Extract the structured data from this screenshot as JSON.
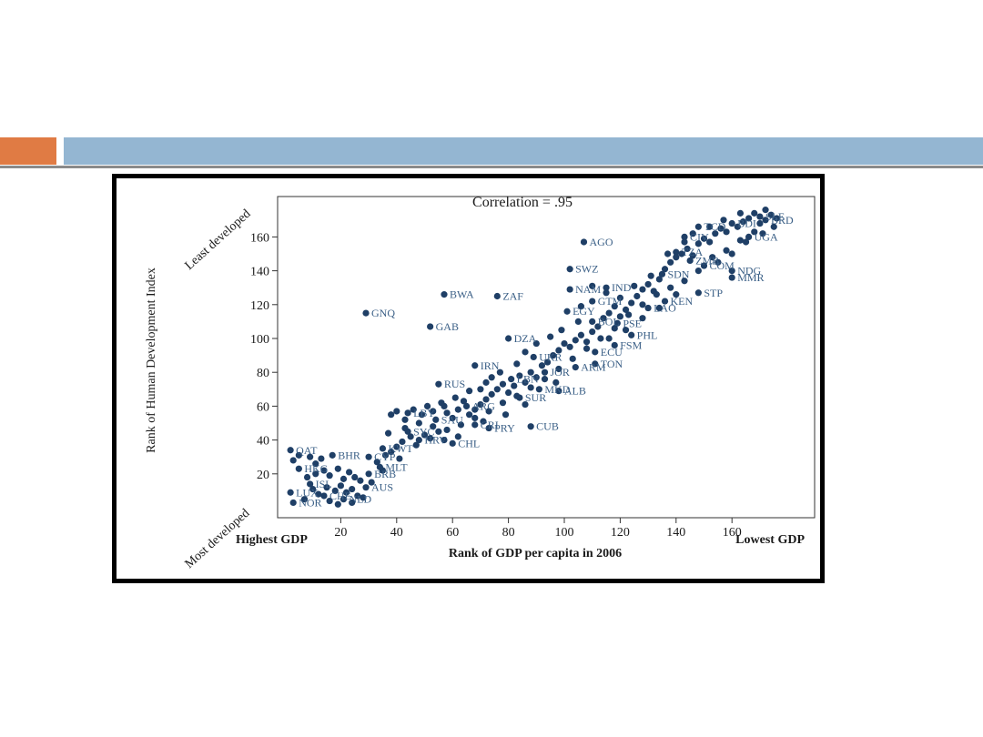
{
  "slide": {
    "accent_orange": "#e07b44",
    "accent_blue": "#94b6d2"
  },
  "chart_data": {
    "type": "scatter",
    "title": "Correlation = .95",
    "xlabel": "Rank of GDP per capita in 2006",
    "ylabel": "Rank of Human Development Index",
    "x_low_label": "Highest GDP",
    "x_high_label": "Lowest GDP",
    "y_low_label": "Most developed",
    "y_high_label": "Least developed",
    "xlim": [
      0,
      180
    ],
    "ylim": [
      0,
      180
    ],
    "xticks": [
      20,
      40,
      60,
      80,
      100,
      120,
      140,
      160
    ],
    "yticks": [
      20,
      40,
      60,
      80,
      100,
      120,
      140,
      160
    ],
    "marker_color": "#1f3f66",
    "label_color": "#3a5f86",
    "grid": false,
    "points": [
      {
        "x": 107,
        "y": 157,
        "label": "AGO"
      },
      {
        "x": 102,
        "y": 141,
        "label": "SWZ"
      },
      {
        "x": 57,
        "y": 126,
        "label": "BWA"
      },
      {
        "x": 76,
        "y": 125,
        "label": "ZAF"
      },
      {
        "x": 29,
        "y": 115,
        "label": "GNQ"
      },
      {
        "x": 52,
        "y": 107,
        "label": "GAB"
      },
      {
        "x": 101,
        "y": 116,
        "label": "EGY"
      },
      {
        "x": 80,
        "y": 100,
        "label": "DZA"
      },
      {
        "x": 111,
        "y": 85,
        "label": "TON"
      },
      {
        "x": 98,
        "y": 69,
        "label": "ALB"
      },
      {
        "x": 88,
        "y": 48,
        "label": "CUB"
      },
      {
        "x": 2,
        "y": 34,
        "label": "QAT"
      },
      {
        "x": 17,
        "y": 31,
        "label": "BHR"
      },
      {
        "x": 5,
        "y": 23,
        "label": "HKG"
      },
      {
        "x": 2,
        "y": 9,
        "label": "LUX"
      },
      {
        "x": 3,
        "y": 3,
        "label": "NOR"
      },
      {
        "x": 68,
        "y": 84,
        "label": "IRN"
      },
      {
        "x": 55,
        "y": 73,
        "label": "RUS"
      },
      {
        "x": 102,
        "y": 129,
        "label": "NAM"
      },
      {
        "x": 110,
        "y": 122,
        "label": "GTM"
      },
      {
        "x": 119,
        "y": 109,
        "label": "PSE"
      },
      {
        "x": 124,
        "y": 102,
        "label": "PHL"
      },
      {
        "x": 118,
        "y": 96,
        "label": "FSM"
      },
      {
        "x": 111,
        "y": 92,
        "label": "ECU"
      },
      {
        "x": 104,
        "y": 83,
        "label": "ARM"
      },
      {
        "x": 73,
        "y": 47,
        "label": "PRY"
      },
      {
        "x": 68,
        "y": 49,
        "label": "CRI"
      },
      {
        "x": 60,
        "y": 38,
        "label": "CHL"
      },
      {
        "x": 35,
        "y": 35,
        "label": "KWT"
      },
      {
        "x": 30,
        "y": 30,
        "label": "CYP"
      },
      {
        "x": 34,
        "y": 24,
        "label": "MLT"
      },
      {
        "x": 30,
        "y": 20,
        "label": "BRB"
      },
      {
        "x": 29,
        "y": 12,
        "label": "AUS"
      },
      {
        "x": 148,
        "y": 127,
        "label": "STP"
      },
      {
        "x": 160,
        "y": 136,
        "label": "MMR"
      },
      {
        "x": 160,
        "y": 140,
        "label": "NDG"
      },
      {
        "x": 150,
        "y": 143,
        "label": "COM"
      },
      {
        "x": 143,
        "y": 160,
        "label": "CIV"
      },
      {
        "x": 148,
        "y": 166,
        "label": "TCD"
      },
      {
        "x": 160,
        "y": 168,
        "label": "BDI"
      },
      {
        "x": 172,
        "y": 170,
        "label": "BRD"
      },
      {
        "x": 166,
        "y": 160,
        "label": "UGA"
      },
      {
        "x": 170,
        "y": 172,
        "label": "SLE"
      },
      {
        "x": 135,
        "y": 138,
        "label": "SDN"
      },
      {
        "x": 145,
        "y": 146,
        "label": "ZMB"
      },
      {
        "x": 140,
        "y": 151,
        "label": "TZA"
      },
      {
        "x": 136,
        "y": 122,
        "label": "KEN"
      },
      {
        "x": 130,
        "y": 118,
        "label": "LAO"
      },
      {
        "x": 115,
        "y": 130,
        "label": "IND"
      },
      {
        "x": 110,
        "y": 110,
        "label": "BOL"
      },
      {
        "x": 89,
        "y": 89,
        "label": "UKR"
      },
      {
        "x": 93,
        "y": 80,
        "label": "JOR"
      },
      {
        "x": 81,
        "y": 76,
        "label": "LBN"
      },
      {
        "x": 91,
        "y": 70,
        "label": "MKD"
      },
      {
        "x": 84,
        "y": 65,
        "label": "SUR"
      },
      {
        "x": 65,
        "y": 60,
        "label": "ARG"
      },
      {
        "x": 44,
        "y": 56,
        "label": "LBY"
      },
      {
        "x": 54,
        "y": 52,
        "label": "SAU"
      },
      {
        "x": 48,
        "y": 40,
        "label": "HRV"
      },
      {
        "x": 44,
        "y": 45,
        "label": "SYC"
      },
      {
        "x": 9,
        "y": 14,
        "label": "ISL"
      },
      {
        "x": 14,
        "y": 7,
        "label": "CHE"
      },
      {
        "x": 21,
        "y": 5,
        "label": "NLD"
      },
      {
        "x": 3,
        "y": 28
      },
      {
        "x": 5,
        "y": 31
      },
      {
        "x": 9,
        "y": 30
      },
      {
        "x": 11,
        "y": 26
      },
      {
        "x": 13,
        "y": 29
      },
      {
        "x": 8,
        "y": 18
      },
      {
        "x": 11,
        "y": 20
      },
      {
        "x": 14,
        "y": 22
      },
      {
        "x": 16,
        "y": 19
      },
      {
        "x": 19,
        "y": 23
      },
      {
        "x": 21,
        "y": 17
      },
      {
        "x": 23,
        "y": 21
      },
      {
        "x": 25,
        "y": 18
      },
      {
        "x": 27,
        "y": 16
      },
      {
        "x": 10,
        "y": 11
      },
      {
        "x": 12,
        "y": 8
      },
      {
        "x": 15,
        "y": 12
      },
      {
        "x": 18,
        "y": 10
      },
      {
        "x": 20,
        "y": 13
      },
      {
        "x": 22,
        "y": 9
      },
      {
        "x": 24,
        "y": 11
      },
      {
        "x": 26,
        "y": 7
      },
      {
        "x": 7,
        "y": 5
      },
      {
        "x": 16,
        "y": 4
      },
      {
        "x": 19,
        "y": 2
      },
      {
        "x": 24,
        "y": 3
      },
      {
        "x": 28,
        "y": 6
      },
      {
        "x": 31,
        "y": 15
      },
      {
        "x": 33,
        "y": 27
      },
      {
        "x": 36,
        "y": 31
      },
      {
        "x": 38,
        "y": 33
      },
      {
        "x": 40,
        "y": 36
      },
      {
        "x": 42,
        "y": 39
      },
      {
        "x": 45,
        "y": 42
      },
      {
        "x": 47,
        "y": 37
      },
      {
        "x": 50,
        "y": 43
      },
      {
        "x": 52,
        "y": 41
      },
      {
        "x": 55,
        "y": 45
      },
      {
        "x": 57,
        "y": 40
      },
      {
        "x": 38,
        "y": 55
      },
      {
        "x": 40,
        "y": 57
      },
      {
        "x": 43,
        "y": 52
      },
      {
        "x": 46,
        "y": 58
      },
      {
        "x": 49,
        "y": 55
      },
      {
        "x": 51,
        "y": 60
      },
      {
        "x": 53,
        "y": 57
      },
      {
        "x": 56,
        "y": 62
      },
      {
        "x": 58,
        "y": 56
      },
      {
        "x": 60,
        "y": 53
      },
      {
        "x": 62,
        "y": 58
      },
      {
        "x": 64,
        "y": 63
      },
      {
        "x": 66,
        "y": 55
      },
      {
        "x": 68,
        "y": 58
      },
      {
        "x": 70,
        "y": 61
      },
      {
        "x": 72,
        "y": 64
      },
      {
        "x": 74,
        "y": 67
      },
      {
        "x": 76,
        "y": 70
      },
      {
        "x": 78,
        "y": 73
      },
      {
        "x": 80,
        "y": 68
      },
      {
        "x": 82,
        "y": 72
      },
      {
        "x": 84,
        "y": 78
      },
      {
        "x": 86,
        "y": 74
      },
      {
        "x": 88,
        "y": 80
      },
      {
        "x": 90,
        "y": 77
      },
      {
        "x": 92,
        "y": 84
      },
      {
        "x": 94,
        "y": 86
      },
      {
        "x": 96,
        "y": 90
      },
      {
        "x": 98,
        "y": 93
      },
      {
        "x": 100,
        "y": 97
      },
      {
        "x": 102,
        "y": 95
      },
      {
        "x": 104,
        "y": 99
      },
      {
        "x": 106,
        "y": 102
      },
      {
        "x": 108,
        "y": 98
      },
      {
        "x": 110,
        "y": 104
      },
      {
        "x": 112,
        "y": 107
      },
      {
        "x": 114,
        "y": 112
      },
      {
        "x": 116,
        "y": 115
      },
      {
        "x": 118,
        "y": 119
      },
      {
        "x": 120,
        "y": 113
      },
      {
        "x": 122,
        "y": 117
      },
      {
        "x": 124,
        "y": 121
      },
      {
        "x": 126,
        "y": 125
      },
      {
        "x": 128,
        "y": 129
      },
      {
        "x": 130,
        "y": 132
      },
      {
        "x": 132,
        "y": 128
      },
      {
        "x": 134,
        "y": 135
      },
      {
        "x": 136,
        "y": 141
      },
      {
        "x": 138,
        "y": 145
      },
      {
        "x": 140,
        "y": 148
      },
      {
        "x": 142,
        "y": 150
      },
      {
        "x": 144,
        "y": 153
      },
      {
        "x": 146,
        "y": 149
      },
      {
        "x": 148,
        "y": 156
      },
      {
        "x": 150,
        "y": 159
      },
      {
        "x": 152,
        "y": 157
      },
      {
        "x": 154,
        "y": 162
      },
      {
        "x": 156,
        "y": 165
      },
      {
        "x": 158,
        "y": 163
      },
      {
        "x": 162,
        "y": 166
      },
      {
        "x": 164,
        "y": 169
      },
      {
        "x": 166,
        "y": 171
      },
      {
        "x": 168,
        "y": 174
      },
      {
        "x": 170,
        "y": 168
      },
      {
        "x": 172,
        "y": 176
      },
      {
        "x": 174,
        "y": 173
      },
      {
        "x": 176,
        "y": 171
      },
      {
        "x": 168,
        "y": 163
      },
      {
        "x": 163,
        "y": 158
      },
      {
        "x": 158,
        "y": 152
      },
      {
        "x": 153,
        "y": 148
      },
      {
        "x": 148,
        "y": 140
      },
      {
        "x": 143,
        "y": 134
      },
      {
        "x": 138,
        "y": 130
      },
      {
        "x": 133,
        "y": 126
      },
      {
        "x": 128,
        "y": 120
      },
      {
        "x": 123,
        "y": 114
      },
      {
        "x": 118,
        "y": 106
      },
      {
        "x": 113,
        "y": 100
      },
      {
        "x": 108,
        "y": 94
      },
      {
        "x": 103,
        "y": 88
      },
      {
        "x": 98,
        "y": 82
      },
      {
        "x": 93,
        "y": 76
      },
      {
        "x": 88,
        "y": 71
      },
      {
        "x": 83,
        "y": 66
      },
      {
        "x": 78,
        "y": 62
      },
      {
        "x": 73,
        "y": 57
      },
      {
        "x": 68,
        "y": 53
      },
      {
        "x": 63,
        "y": 49
      },
      {
        "x": 58,
        "y": 46
      },
      {
        "x": 53,
        "y": 48
      },
      {
        "x": 48,
        "y": 50
      },
      {
        "x": 43,
        "y": 47
      },
      {
        "x": 37,
        "y": 44
      },
      {
        "x": 41,
        "y": 29
      },
      {
        "x": 35,
        "y": 22
      },
      {
        "x": 106,
        "y": 119
      },
      {
        "x": 110,
        "y": 131
      },
      {
        "x": 115,
        "y": 127
      },
      {
        "x": 120,
        "y": 124
      },
      {
        "x": 125,
        "y": 131
      },
      {
        "x": 131,
        "y": 137
      },
      {
        "x": 137,
        "y": 150
      },
      {
        "x": 143,
        "y": 157
      },
      {
        "x": 146,
        "y": 162
      },
      {
        "x": 152,
        "y": 166
      },
      {
        "x": 157,
        "y": 170
      },
      {
        "x": 163,
        "y": 174
      },
      {
        "x": 175,
        "y": 166
      },
      {
        "x": 171,
        "y": 162
      },
      {
        "x": 165,
        "y": 157
      },
      {
        "x": 160,
        "y": 150
      },
      {
        "x": 155,
        "y": 145
      },
      {
        "x": 140,
        "y": 126
      },
      {
        "x": 134,
        "y": 118
      },
      {
        "x": 128,
        "y": 112
      },
      {
        "x": 122,
        "y": 105
      },
      {
        "x": 116,
        "y": 100
      },
      {
        "x": 97,
        "y": 74
      },
      {
        "x": 86,
        "y": 61
      },
      {
        "x": 79,
        "y": 55
      },
      {
        "x": 71,
        "y": 51
      },
      {
        "x": 62,
        "y": 42
      },
      {
        "x": 86,
        "y": 92
      },
      {
        "x": 90,
        "y": 97
      },
      {
        "x": 95,
        "y": 101
      },
      {
        "x": 83,
        "y": 85
      },
      {
        "x": 77,
        "y": 80
      },
      {
        "x": 72,
        "y": 74
      },
      {
        "x": 66,
        "y": 69
      },
      {
        "x": 61,
        "y": 65
      },
      {
        "x": 57,
        "y": 60
      },
      {
        "x": 74,
        "y": 77
      },
      {
        "x": 70,
        "y": 70
      },
      {
        "x": 99,
        "y": 105
      },
      {
        "x": 105,
        "y": 110
      }
    ]
  }
}
